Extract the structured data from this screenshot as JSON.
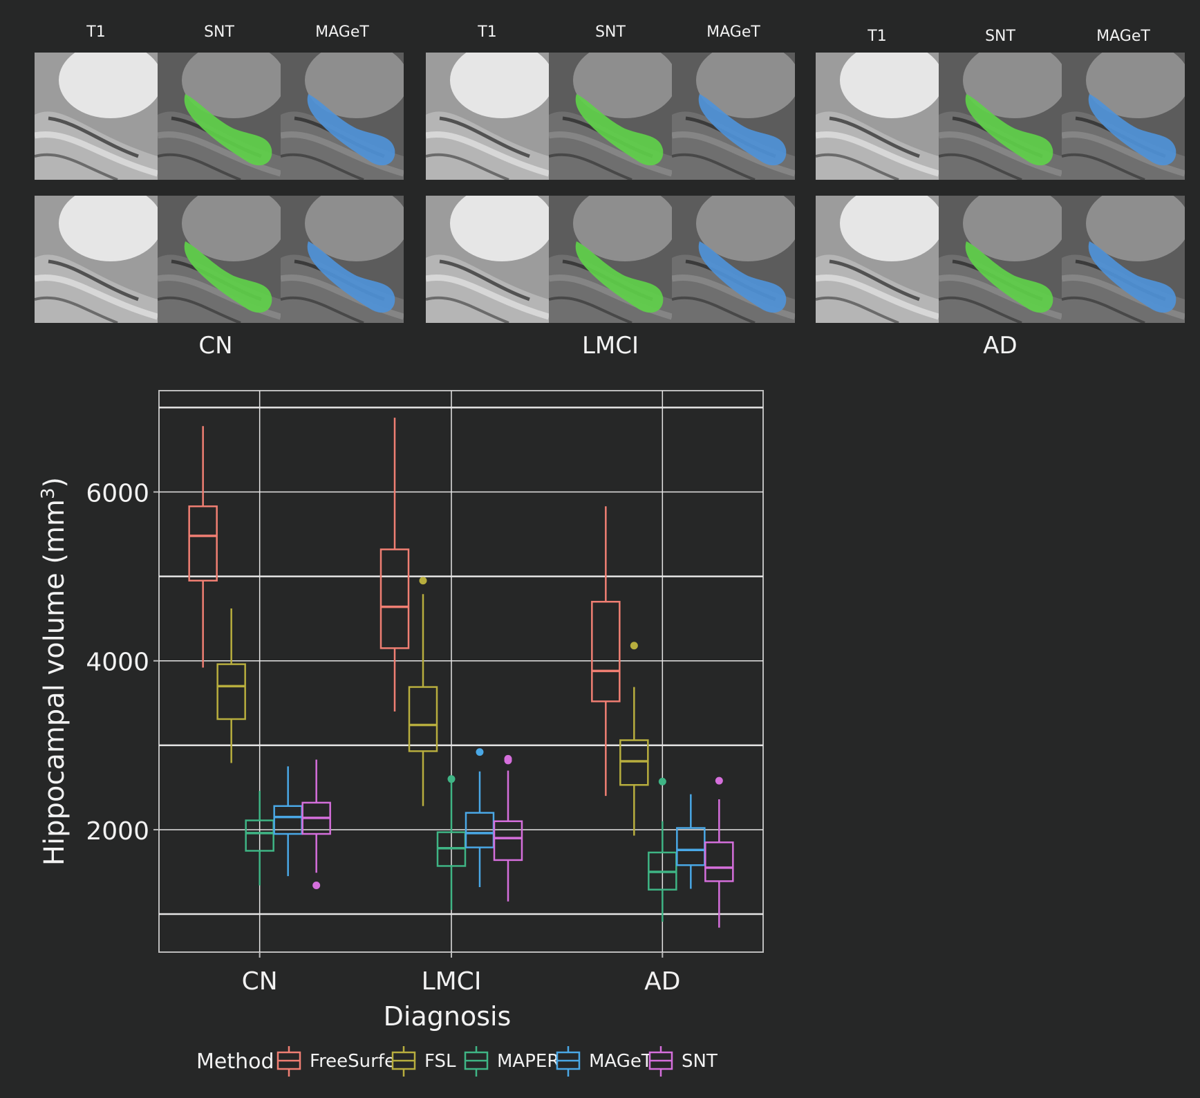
{
  "image_panels": {
    "groups": [
      {
        "label": "CN",
        "columns": [
          "T1",
          "SNT",
          "MAGeT"
        ]
      },
      {
        "label": "LMCI",
        "columns": [
          "T1",
          "SNT",
          "MAGeT"
        ]
      },
      {
        "label": "AD",
        "columns": [
          "T1",
          "SNT",
          "MAGeT"
        ]
      }
    ],
    "colors": {
      "snt": "#5fd04a",
      "maget": "#4f93d8"
    }
  },
  "chart_data": {
    "type": "box",
    "categories": [
      "CN",
      "LMCI",
      "AD"
    ],
    "xlabel": "Diagnosis",
    "ylabel": "Hippocampal volume (mm",
    "ylabel_sup": "3",
    "ylabel_close": ")",
    "ylim": [
      550,
      7200
    ],
    "yticks": [
      2000,
      4000,
      6000
    ],
    "ytick_labels": [
      "2000",
      "4000",
      "6000"
    ],
    "legend": {
      "title": "Method",
      "position": "bottom"
    },
    "series": [
      {
        "name": "FreeSurfer",
        "color": "#f07f73",
        "boxes": [
          {
            "min": 3920,
            "q1": 4950,
            "median": 5480,
            "q3": 5830,
            "max": 6780,
            "outliers": []
          },
          {
            "min": 3400,
            "q1": 4150,
            "median": 4640,
            "q3": 5320,
            "max": 6880,
            "outliers": []
          },
          {
            "min": 2400,
            "q1": 3520,
            "median": 3880,
            "q3": 4700,
            "max": 5830,
            "outliers": []
          }
        ]
      },
      {
        "name": "FSL",
        "color": "#b8ae3e",
        "boxes": [
          {
            "min": 2790,
            "q1": 3310,
            "median": 3700,
            "q3": 3960,
            "max": 4620,
            "outliers": []
          },
          {
            "min": 2280,
            "q1": 2930,
            "median": 3240,
            "q3": 3690,
            "max": 4790,
            "outliers": [
              4950
            ]
          },
          {
            "min": 1930,
            "q1": 2530,
            "median": 2810,
            "q3": 3060,
            "max": 3690,
            "outliers": [
              4180
            ]
          }
        ]
      },
      {
        "name": "MAPER",
        "color": "#3fb585",
        "boxes": [
          {
            "min": 1340,
            "q1": 1750,
            "median": 1960,
            "q3": 2110,
            "max": 2460,
            "outliers": []
          },
          {
            "min": 1050,
            "q1": 1570,
            "median": 1780,
            "q3": 1970,
            "max": 2590,
            "outliers": [
              2600
            ]
          },
          {
            "min": 910,
            "q1": 1290,
            "median": 1500,
            "q3": 1730,
            "max": 2100,
            "outliers": [
              2570
            ]
          }
        ]
      },
      {
        "name": "MAGeT",
        "color": "#4aa8e6",
        "boxes": [
          {
            "min": 1450,
            "q1": 1950,
            "median": 2150,
            "q3": 2280,
            "max": 2750,
            "outliers": []
          },
          {
            "min": 1320,
            "q1": 1790,
            "median": 1960,
            "q3": 2200,
            "max": 2690,
            "outliers": [
              2920
            ]
          },
          {
            "min": 1300,
            "q1": 1580,
            "median": 1760,
            "q3": 2020,
            "max": 2420,
            "outliers": []
          }
        ]
      },
      {
        "name": "SNT",
        "color": "#d56fdc",
        "boxes": [
          {
            "min": 1490,
            "q1": 1950,
            "median": 2140,
            "q3": 2320,
            "max": 2830,
            "outliers": [
              1340
            ]
          },
          {
            "min": 1150,
            "q1": 1640,
            "median": 1900,
            "q3": 2100,
            "max": 2700,
            "outliers": [
              2820,
              2840
            ]
          },
          {
            "min": 840,
            "q1": 1390,
            "median": 1550,
            "q3": 1850,
            "max": 2360,
            "outliers": [
              2580
            ]
          }
        ]
      }
    ]
  }
}
